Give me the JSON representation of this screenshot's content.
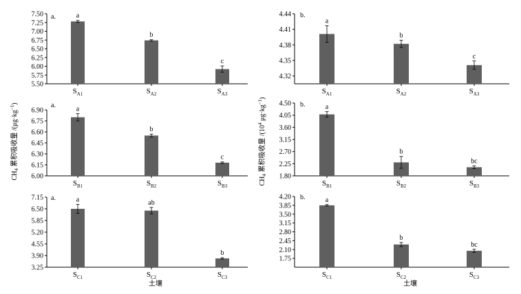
{
  "colors": {
    "bar": "#5f5f5f",
    "axis": "#000000",
    "background": "#ffffff"
  },
  "y_axis_title_left": {
    "base": "CH",
    "sub": "4",
    "text": " 累积吸收量 /(μg·kg",
    "sup": "−1",
    "close": ")"
  },
  "y_axis_title_right": {
    "base": "CH",
    "sub": "4",
    "text": " 累积吸收量 /(10",
    "sup1": "4",
    "text2": " μg·kg",
    "sup2": "−1",
    "close": ")"
  },
  "chart_data": [
    {
      "id": "A-left",
      "type": "bar",
      "panel_label": "a.",
      "ylim": [
        5.5,
        7.5
      ],
      "yticks": [
        "5.50",
        "5.75",
        "6.00",
        "6.25",
        "6.50",
        "6.75",
        "7.00",
        "7.25",
        "7.50"
      ],
      "categories": [
        {
          "base": "S",
          "sub": "A1"
        },
        {
          "base": "S",
          "sub": "A2"
        },
        {
          "base": "S",
          "sub": "A3"
        }
      ],
      "values": [
        7.28,
        6.74,
        5.92
      ],
      "errors": [
        0.03,
        0.02,
        0.09
      ],
      "letters": [
        "a",
        "b",
        "c"
      ],
      "xlabel": ""
    },
    {
      "id": "A-right",
      "type": "bar",
      "panel_label": "b.",
      "ylim": [
        4.305,
        4.44
      ],
      "yticks": [
        "4.32",
        "4.35",
        "4.38",
        "4.41",
        "4.44"
      ],
      "categories": [
        {
          "base": "S",
          "sub": "A1"
        },
        {
          "base": "S",
          "sub": "A2"
        },
        {
          "base": "S",
          "sub": "A3"
        }
      ],
      "values": [
        4.401,
        4.382,
        4.341
      ],
      "errors": [
        0.016,
        0.007,
        0.008
      ],
      "letters": [
        "a",
        "b",
        "c"
      ],
      "xlabel": ""
    },
    {
      "id": "B-left",
      "type": "bar",
      "panel_label": "a.",
      "ylim": [
        6.0,
        6.9
      ],
      "yticks": [
        "6.00",
        "6.15",
        "6.30",
        "6.45",
        "6.60",
        "6.75",
        "6.90"
      ],
      "categories": [
        {
          "base": "S",
          "sub": "B1"
        },
        {
          "base": "S",
          "sub": "B2"
        },
        {
          "base": "S",
          "sub": "B3"
        }
      ],
      "values": [
        6.8,
        6.55,
        6.18
      ],
      "errors": [
        0.05,
        0.02,
        0.01
      ],
      "letters": [
        "a",
        "b",
        "c"
      ],
      "xlabel": ""
    },
    {
      "id": "B-right",
      "type": "bar",
      "panel_label": "b.",
      "ylim": [
        1.8,
        4.5
      ],
      "yticks": [
        "1.80",
        "2.25",
        "2.70",
        "3.15",
        "3.60",
        "4.05",
        "4.50"
      ],
      "categories": [
        {
          "base": "S",
          "sub": "B1"
        },
        {
          "base": "S",
          "sub": "B2"
        },
        {
          "base": "S",
          "sub": "B3"
        }
      ],
      "values": [
        4.08,
        2.3,
        2.12
      ],
      "errors": [
        0.1,
        0.22,
        0.05
      ],
      "letters": [
        "a",
        "b",
        "bc"
      ],
      "xlabel": ""
    },
    {
      "id": "C-left",
      "type": "bar",
      "panel_label": "a.",
      "ylim": [
        3.25,
        7.15
      ],
      "yticks": [
        "3.25",
        "3.90",
        "4.55",
        "5.20",
        "5.85",
        "6.50",
        "7.15"
      ],
      "categories": [
        {
          "base": "S",
          "sub": "C1"
        },
        {
          "base": "S",
          "sub": "C2"
        },
        {
          "base": "S",
          "sub": "C3"
        }
      ],
      "values": [
        6.5,
        6.4,
        3.74
      ],
      "errors": [
        0.25,
        0.18,
        0.04
      ],
      "letters": [
        "a",
        "ab",
        "b"
      ],
      "xlabel": "土壤"
    },
    {
      "id": "C-right",
      "type": "bar",
      "panel_label": "b.",
      "ylim": [
        1.4,
        4.2
      ],
      "yticks": [
        "1.75",
        "2.10",
        "2.45",
        "2.80",
        "3.15",
        "3.50",
        "3.85",
        "4.20"
      ],
      "categories": [
        {
          "base": "S",
          "sub": "C1"
        },
        {
          "base": "S",
          "sub": "C2"
        },
        {
          "base": "S",
          "sub": "C3"
        }
      ],
      "values": [
        3.85,
        2.3,
        2.05
      ],
      "errors": [
        0.03,
        0.08,
        0.06
      ],
      "letters": [
        "a",
        "b",
        "bc"
      ],
      "xlabel": "土壤"
    }
  ]
}
